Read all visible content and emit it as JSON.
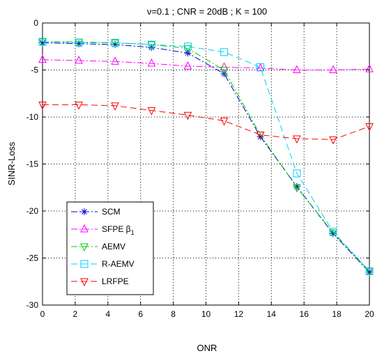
{
  "chart_data": {
    "type": "line",
    "title": "ν=0.1 ; CNR = 20dB ; K = 100",
    "xlabel": "ONR",
    "ylabel": "SINR-Loss",
    "xlim": [
      0,
      20
    ],
    "ylim": [
      -30,
      0
    ],
    "xticks": [
      0,
      2,
      4,
      6,
      8,
      10,
      12,
      14,
      16,
      18,
      20
    ],
    "yticks": [
      0,
      -5,
      -10,
      -15,
      -20,
      -25,
      -30
    ],
    "grid": true,
    "legend_position": "lower-left",
    "x": [
      0,
      2.22,
      4.44,
      6.67,
      8.89,
      11.11,
      13.33,
      15.56,
      17.78,
      20
    ],
    "series": [
      {
        "name": "SCM",
        "color": "#0000cc",
        "marker": "star",
        "dash": "dashdot",
        "values": [
          -2.1,
          -2.2,
          -2.3,
          -2.6,
          -3.2,
          -5.4,
          -12.1,
          -17.4,
          -22.4,
          -26.5
        ]
      },
      {
        "name": "SFPE β1",
        "label_main": "SFPE β",
        "label_sub": "1",
        "color": "#ff00ff",
        "marker": "triangle-up",
        "dash": "dashdot",
        "values": [
          -3.9,
          -4.0,
          -4.1,
          -4.3,
          -4.6,
          -4.7,
          -4.8,
          -5.0,
          -5.0,
          -4.9
        ]
      },
      {
        "name": "AEMV",
        "color": "#00cc00",
        "marker": "triangle-down",
        "dash": "dashdot",
        "values": [
          -2.0,
          -2.0,
          -2.1,
          -2.3,
          -2.7,
          -5.0,
          -11.9,
          -17.5,
          -22.3,
          -26.4
        ]
      },
      {
        "name": "R-AEMV",
        "color": "#00ccff",
        "marker": "square",
        "dash": "dash",
        "values": [
          -2.0,
          -2.1,
          -2.1,
          -2.3,
          -2.5,
          -3.1,
          -4.7,
          -16.0,
          -22.2,
          -26.4
        ]
      },
      {
        "name": "LRFPE",
        "color": "#ff0000",
        "marker": "triangle-down",
        "dash": "dash",
        "values": [
          -8.7,
          -8.7,
          -8.8,
          -9.3,
          -9.8,
          -10.4,
          -11.9,
          -12.3,
          -12.4,
          -11.0
        ]
      }
    ]
  }
}
